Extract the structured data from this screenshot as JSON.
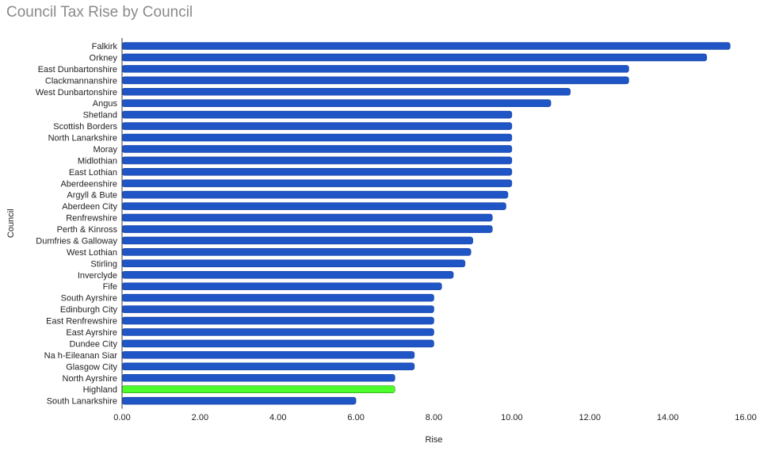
{
  "chart_data": {
    "type": "bar",
    "orientation": "horizontal",
    "title": "Council Tax Rise by Council",
    "xlabel": "Rise",
    "ylabel": "Council",
    "xlim": [
      0,
      16
    ],
    "xticks": [
      "0.00",
      "2.00",
      "4.00",
      "6.00",
      "8.00",
      "10.00",
      "12.00",
      "14.00",
      "16.00"
    ],
    "grid": false,
    "legend": "none",
    "bar_color": "#1f55c4",
    "highlight_color": "#4cff2a",
    "highlight": "Highland",
    "categories": [
      "Falkirk",
      "Orkney",
      "East Dunbartonshire",
      "Clackmannanshire",
      "West Dunbartonshire",
      "Angus",
      "Shetland",
      "Scottish Borders",
      "North Lanarkshire",
      "Moray",
      "Midlothian",
      "East Lothian",
      "Aberdeenshire",
      "Argyll & Bute",
      "Aberdeen City",
      "Renfrewshire",
      "Perth & Kinross",
      "Dumfries & Galloway",
      "West Lothian",
      "Stirling",
      "Inverclyde",
      "Fife",
      "South Ayrshire",
      "Edinburgh City",
      "East Renfrewshire",
      "East Ayrshire",
      "Dundee City",
      "Na h-Eileanan Siar",
      "Glasgow City",
      "North Ayrshire",
      "Highland",
      "South Lanarkshire"
    ],
    "values": [
      15.6,
      15.0,
      13.0,
      13.0,
      11.5,
      11.0,
      10.0,
      10.0,
      10.0,
      10.0,
      10.0,
      10.0,
      10.0,
      9.9,
      9.85,
      9.5,
      9.5,
      9.0,
      8.95,
      8.8,
      8.5,
      8.2,
      8.0,
      8.0,
      8.0,
      8.0,
      8.0,
      7.5,
      7.5,
      7.0,
      7.0,
      6.0
    ]
  }
}
